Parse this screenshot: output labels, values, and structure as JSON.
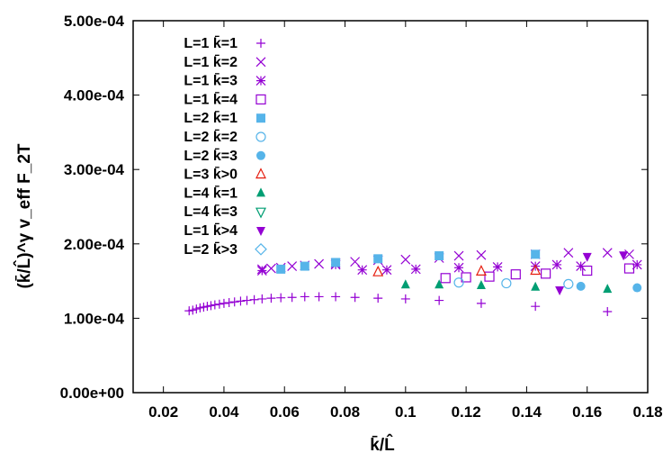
{
  "chart_data": {
    "type": "scatter",
    "xlabel": "k̄/L̂",
    "ylabel": "(k̄/L̂)^γ v_eff F_2T",
    "xlim": [
      0.01,
      0.18
    ],
    "ylim": [
      0,
      0.0005
    ],
    "x_ticks": [
      "0.02",
      "0.04",
      "0.06",
      "0.08",
      "0.1",
      "0.12",
      "0.14",
      "0.16",
      "0.18"
    ],
    "y_ticks": [
      "0.00e+00",
      "1.00e-04",
      "2.00e-04",
      "3.00e-04",
      "4.00e-04",
      "5.00e-04"
    ],
    "legend_position": "top-left",
    "series": [
      {
        "name": "L=1 k̄=1",
        "marker": "plus",
        "color": "#9400d3",
        "points": [
          [
            0.0285,
            0.00011
          ],
          [
            0.0297,
            0.000111
          ],
          [
            0.0309,
            0.0001125
          ],
          [
            0.0321,
            0.000114
          ],
          [
            0.0333,
            0.000115
          ],
          [
            0.0345,
            0.000116
          ],
          [
            0.0357,
            0.000117
          ],
          [
            0.037,
            0.000118
          ],
          [
            0.0385,
            0.000119
          ],
          [
            0.04,
            0.00012
          ],
          [
            0.0417,
            0.000121
          ],
          [
            0.0435,
            0.000122
          ],
          [
            0.0455,
            0.000123
          ],
          [
            0.0476,
            0.000124
          ],
          [
            0.05,
            0.000125
          ],
          [
            0.0526,
            0.000126
          ],
          [
            0.0556,
            0.000127
          ],
          [
            0.0588,
            0.0001275
          ],
          [
            0.0625,
            0.000128
          ],
          [
            0.0667,
            0.000129
          ],
          [
            0.0714,
            0.000129
          ],
          [
            0.0769,
            0.000129
          ],
          [
            0.0833,
            0.000128
          ],
          [
            0.0909,
            0.000127
          ],
          [
            0.1,
            0.000126
          ],
          [
            0.1111,
            0.000124
          ],
          [
            0.125,
            0.00012
          ],
          [
            0.1429,
            0.000116
          ],
          [
            0.1667,
            0.000109
          ]
        ]
      },
      {
        "name": "L=1 k̄=2",
        "marker": "cross",
        "color": "#9400d3",
        "points": [
          [
            0.0526,
            0.000166
          ],
          [
            0.0556,
            0.000167
          ],
          [
            0.0588,
            0.000168
          ],
          [
            0.0625,
            0.00017
          ],
          [
            0.0667,
            0.000171
          ],
          [
            0.0714,
            0.000173
          ],
          [
            0.0769,
            0.000174
          ],
          [
            0.0833,
            0.000176
          ],
          [
            0.0909,
            0.000178
          ],
          [
            0.1,
            0.000179
          ],
          [
            0.1111,
            0.000181
          ],
          [
            0.1176,
            0.000184
          ],
          [
            0.125,
            0.000185
          ],
          [
            0.1429,
            0.000186
          ],
          [
            0.1538,
            0.000188
          ],
          [
            0.1667,
            0.000188
          ],
          [
            0.1739,
            0.000186
          ]
        ]
      },
      {
        "name": "L=1 k̄=3",
        "marker": "star",
        "color": "#9400d3",
        "points": [
          [
            0.0526,
            0.000164
          ],
          [
            0.0769,
            0.000172
          ],
          [
            0.0857,
            0.000165
          ],
          [
            0.0938,
            0.000165
          ],
          [
            0.1034,
            0.000166
          ],
          [
            0.1176,
            0.000168
          ],
          [
            0.1304,
            0.000169
          ],
          [
            0.1429,
            0.00017
          ],
          [
            0.15,
            0.000172
          ],
          [
            0.1579,
            0.00017
          ],
          [
            0.1765,
            0.000172
          ]
        ]
      },
      {
        "name": "L=1 k̄=4",
        "marker": "square-open",
        "color": "#9400d3",
        "points": [
          [
            0.1132,
            0.000154
          ],
          [
            0.12,
            0.000155
          ],
          [
            0.1277,
            0.000156
          ],
          [
            0.1364,
            0.000159
          ],
          [
            0.1463,
            0.00016
          ],
          [
            0.16,
            0.000164
          ],
          [
            0.1739,
            0.000167
          ]
        ]
      },
      {
        "name": "L=2 k̄=1",
        "marker": "square-filled",
        "color": "#56b4e9",
        "points": [
          [
            0.0588,
            0.000166
          ],
          [
            0.0667,
            0.00017
          ],
          [
            0.0769,
            0.000175
          ],
          [
            0.0909,
            0.00018
          ],
          [
            0.1111,
            0.000184
          ],
          [
            0.1429,
            0.000186
          ]
        ]
      },
      {
        "name": "L=2 k̄=2",
        "marker": "circle-open",
        "color": "#56b4e9",
        "points": [
          [
            0.1176,
            0.000148
          ],
          [
            0.1333,
            0.000147
          ],
          [
            0.1538,
            0.000146
          ]
        ]
      },
      {
        "name": "L=2 k̄=3",
        "marker": "circle-filled",
        "color": "#56b4e9",
        "points": [
          [
            0.1579,
            0.000143
          ],
          [
            0.1765,
            0.000141
          ]
        ]
      },
      {
        "name": "L=3 k̄>0",
        "marker": "triangle-open",
        "color": "#e51e10",
        "points": [
          [
            0.0909,
            0.000162
          ],
          [
            0.125,
            0.000163
          ],
          [
            0.1429,
            0.000164
          ]
        ]
      },
      {
        "name": "L=4 k̄=1",
        "marker": "triangle-filled",
        "color": "#009e73",
        "points": [
          [
            0.1,
            0.000145
          ],
          [
            0.1111,
            0.000145
          ],
          [
            0.125,
            0.000144
          ],
          [
            0.1429,
            0.000142
          ],
          [
            0.1667,
            0.000139
          ]
        ]
      },
      {
        "name": "L=4 k̄=3",
        "marker": "triangle-down-open",
        "color": "#009e73",
        "points": []
      },
      {
        "name": "L=1 k̄>4",
        "marker": "triangle-down-filled",
        "color": "#9400d3",
        "points": [
          [
            0.1509,
            0.000138
          ],
          [
            0.16,
            0.000183
          ],
          [
            0.172,
            0.000185
          ]
        ]
      },
      {
        "name": "L=2 k̄>3",
        "marker": "diamond-open",
        "color": "#56b4e9",
        "points": []
      }
    ]
  }
}
